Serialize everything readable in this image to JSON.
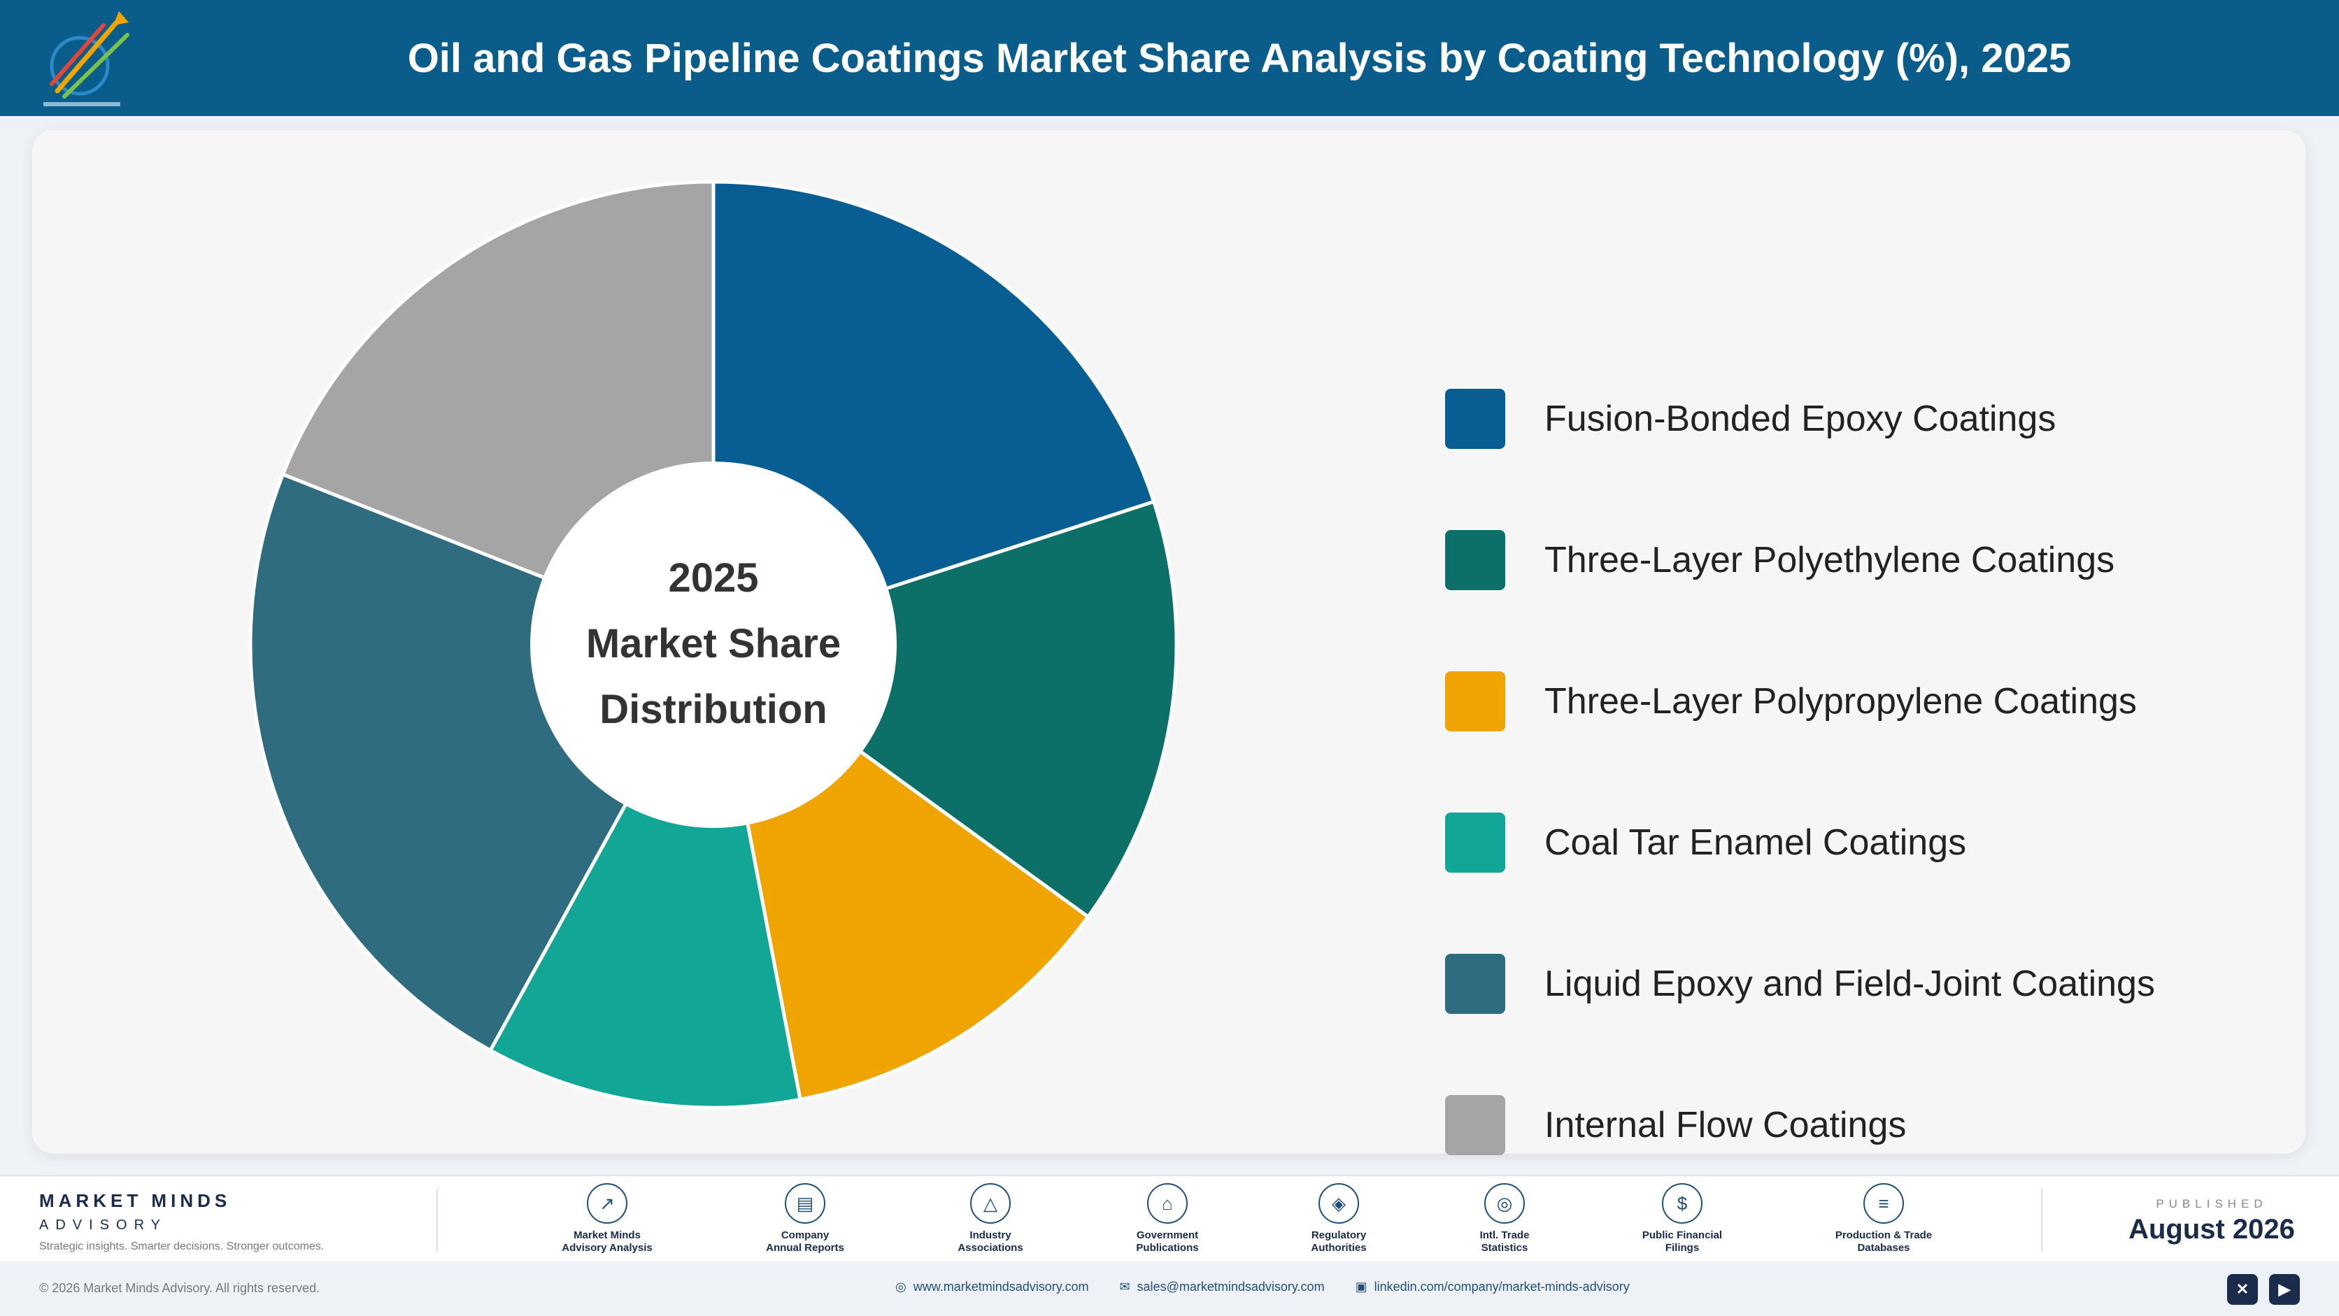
{
  "header": {
    "title": "Oil and Gas Pipeline Coatings Market Share Analysis by Coating Technology (%), 2025",
    "logo_icon": "rocket-logo-icon"
  },
  "chart_data": {
    "type": "pie",
    "title": "Oil and Gas Pipeline Coatings Market Share Analysis by Coating Technology (%), 2025",
    "center_label": [
      "2025",
      "Market Share",
      "Distribution"
    ],
    "categories": [
      "Fusion-Bonded Epoxy Coatings",
      "Three-Layer Polyethylene Coatings",
      "Three-Layer Polypropylene Coatings",
      "Coal Tar Enamel Coatings",
      "Liquid Epoxy and Field-Joint Coatings",
      "Internal Flow Coatings"
    ],
    "values": [
      20,
      15,
      12,
      11,
      23,
      19
    ],
    "colors": [
      "#085e93",
      "#0c7069",
      "#f0a401",
      "#11a696",
      "#2f6c80",
      "#a5a5a5"
    ],
    "legend_position": "right"
  },
  "footer": {
    "brand_name": "MARKET MINDS",
    "brand_sub": "ADVISORY",
    "brand_tagline": "Strategic insights. Smarter decisions. Stronger outcomes.",
    "sources": [
      {
        "icon": "chart-line-icon",
        "glyph": "↗",
        "line1": "Market Minds",
        "line2": "Advisory Analysis"
      },
      {
        "icon": "document-icon",
        "glyph": "▤",
        "line1": "Company",
        "line2": "Annual Reports"
      },
      {
        "icon": "network-icon",
        "glyph": "△",
        "line1": "Industry",
        "line2": "Associations"
      },
      {
        "icon": "government-building-icon",
        "glyph": "⌂",
        "line1": "Government",
        "line2": "Publications"
      },
      {
        "icon": "shield-icon",
        "glyph": "◈",
        "line1": "Regulatory",
        "line2": "Authorities"
      },
      {
        "icon": "globe-icon",
        "glyph": "◎",
        "line1": "Intl. Trade",
        "line2": "Statistics"
      },
      {
        "icon": "dollar-icon",
        "glyph": "$",
        "line1": "Public Financial",
        "line2": "Filings"
      },
      {
        "icon": "database-icon",
        "glyph": "≡",
        "line1": "Production & Trade",
        "line2": "Databases"
      }
    ],
    "published_label": "PUBLISHED",
    "published_date": "August 2026"
  },
  "bottombar": {
    "copyright": "© 2026 Market Minds Advisory. All rights reserved.",
    "website": "www.marketmindsadvisory.com",
    "email": "sales@marketmindsadvisory.com",
    "linkedin": "linkedin.com/company/market-minds-advisory",
    "social": [
      {
        "icon": "x-icon",
        "glyph": "✕"
      },
      {
        "icon": "youtube-icon",
        "glyph": "▶"
      }
    ]
  }
}
